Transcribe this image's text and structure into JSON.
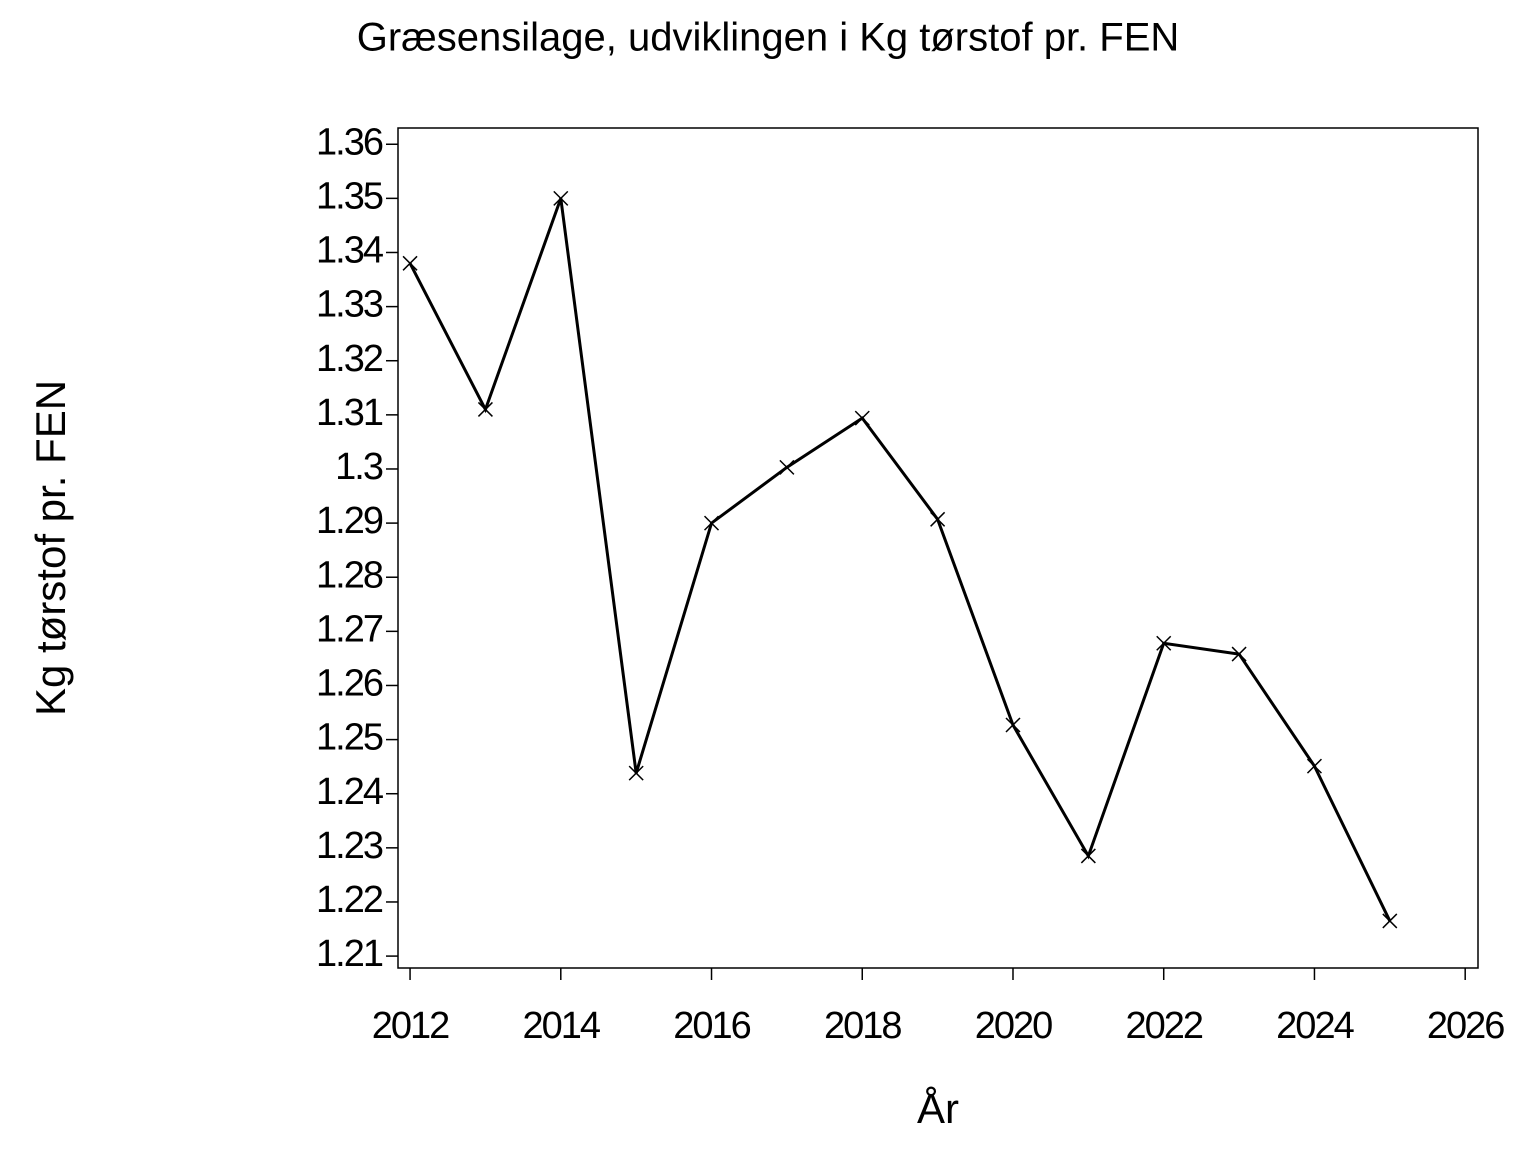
{
  "chart_data": {
    "type": "line",
    "title": "Græsensilage,  udviklingen  i  Kg  tørstof  pr.  FEN",
    "x_label": "År",
    "y_label": "Kg  tørstof  pr.  FEN",
    "x": [
      2012,
      2013,
      2014,
      2015,
      2016,
      2017,
      2018,
      2019,
      2020,
      2021,
      2022,
      2023,
      2024,
      2025
    ],
    "series": [
      {
        "name": "Kg tørstof pr. FEN",
        "color": "#000000",
        "values": [
          1.338,
          1.311,
          1.35,
          1.2438,
          1.29,
          1.3003,
          1.3094,
          1.2907,
          1.2527,
          1.2285,
          1.2678,
          1.2658,
          1.2451,
          1.2165
        ]
      }
    ],
    "xlim": [
      2011.84,
      2026.17
    ],
    "xticks": [
      2012,
      2014,
      2016,
      2018,
      2020,
      2022,
      2024,
      2026
    ],
    "ylim": [
      1.2078,
      1.363
    ],
    "yticks": [
      1.21,
      1.22,
      1.23,
      1.24,
      1.25,
      1.26,
      1.27,
      1.28,
      1.29,
      1.3,
      1.31,
      1.32,
      1.33,
      1.34,
      1.35,
      1.36
    ],
    "grid": false
  }
}
